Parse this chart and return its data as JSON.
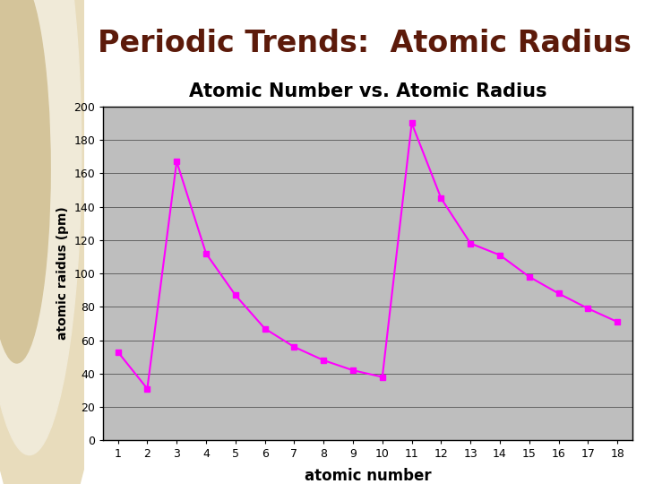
{
  "title_main": "Periodic Trends:  Atomic Radius",
  "chart_title": "Atomic Number vs. Atomic Radius",
  "xlabel": "atomic number",
  "ylabel": "atomic raidus (pm)",
  "x": [
    1,
    2,
    3,
    4,
    5,
    6,
    7,
    8,
    9,
    10,
    11,
    12,
    13,
    14,
    15,
    16,
    17,
    18
  ],
  "y": [
    53,
    31,
    167,
    112,
    87,
    67,
    56,
    48,
    42,
    38,
    190,
    145,
    118,
    111,
    98,
    88,
    79,
    71
  ],
  "line_color": "#FF00FF",
  "marker": "s",
  "marker_size": 4,
  "line_width": 1.5,
  "ylim": [
    0,
    200
  ],
  "yticks": [
    0,
    20,
    40,
    60,
    80,
    100,
    120,
    140,
    160,
    180,
    200
  ],
  "xticks": [
    1,
    2,
    3,
    4,
    5,
    6,
    7,
    8,
    9,
    10,
    11,
    12,
    13,
    14,
    15,
    16,
    17,
    18
  ],
  "plot_bg_color": "#BEBEBE",
  "fig_bg_color": "#FFFFFF",
  "title_color": "#5C1A0A",
  "chart_title_color": "#000000",
  "sidebar_color": "#D4C49A",
  "circle1_color": "#E8DCBC",
  "circle2_color": "#F0EAD8"
}
